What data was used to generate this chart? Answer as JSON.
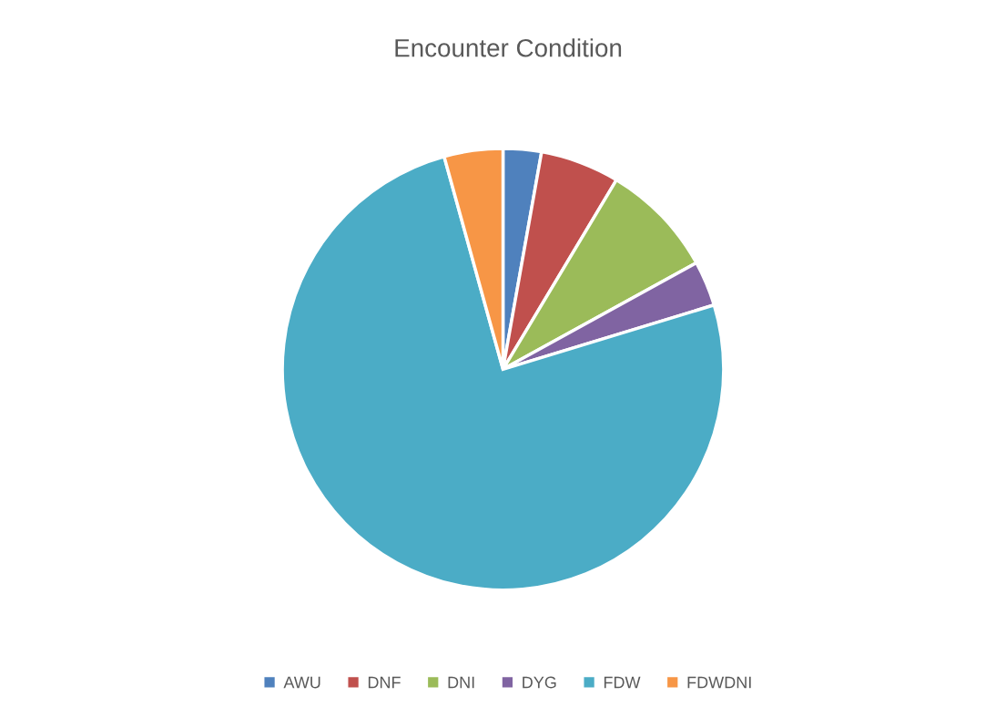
{
  "chart_data": {
    "type": "pie",
    "title": "Encounter Condition",
    "categories": [
      "AWU",
      "DNF",
      "DNI",
      "DYG",
      "FDW",
      "FDWDNI"
    ],
    "values": [
      2.8,
      5.8,
      8.4,
      3.3,
      75.4,
      4.3
    ],
    "colors": [
      "#4f81bd",
      "#c0504d",
      "#9bbb59",
      "#8064a2",
      "#4bacc6",
      "#f79646"
    ],
    "legend": "bottom"
  }
}
